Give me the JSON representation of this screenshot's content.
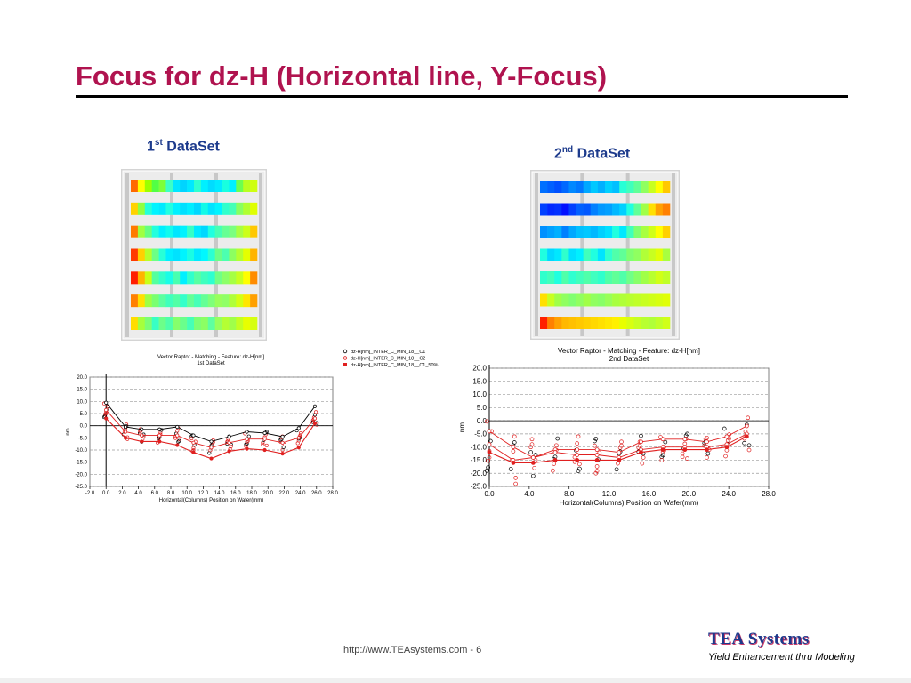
{
  "slide": {
    "title": "Focus for dz-H (Horizontal line, Y-Focus)",
    "footer_url": "http://www.TEAsystems.com - 6",
    "brand": "TEA Systems",
    "brand_tagline": "Yield Enhancement thru Modeling"
  },
  "dataset1": {
    "num": "1",
    "sup": "st",
    "label": "DataSet"
  },
  "dataset2": {
    "num": "2",
    "sup": "nd",
    "label": "DataSet"
  },
  "wafer1": {
    "rows": [
      [
        "#ff6a00",
        "#ffff00",
        "#9cff00",
        "#52ff45",
        "#7dff3a",
        "#3cffc8",
        "#00e6ff",
        "#00d4ff",
        "#00e8ff",
        "#2dffd0",
        "#00f0ff",
        "#00dcff",
        "#00eaff",
        "#18ffe0",
        "#00f0ff",
        "#6cff50",
        "#b9ff20",
        "#cfff10"
      ],
      [
        "#ffd200",
        "#8fff40",
        "#24ffda",
        "#00f4ff",
        "#00eaff",
        "#20ffe2",
        "#00f0ff",
        "#00e0ff",
        "#00eeff",
        "#00d8ff",
        "#12fae8",
        "#00e4ff",
        "#00f4ff",
        "#30ffcc",
        "#44ffb8",
        "#88ff60",
        "#b0ff30",
        "#dfff00"
      ],
      [
        "#ff7a00",
        "#a0ff40",
        "#66ff80",
        "#22ffde",
        "#00f0ff",
        "#10fbee",
        "#00e6ff",
        "#00f2ff",
        "#36ffc6",
        "#00eaff",
        "#00d8ff",
        "#20ffe0",
        "#46ffb4",
        "#66ff94",
        "#7aff80",
        "#a8ff42",
        "#ccff18",
        "#ffc800"
      ],
      [
        "#ff3a00",
        "#ffd000",
        "#b6ff2a",
        "#6cff86",
        "#28ffd8",
        "#00eeff",
        "#00e2ff",
        "#00f4ff",
        "#1afde4",
        "#00eaff",
        "#00f8ff",
        "#2cffd2",
        "#6aff88",
        "#4cffb0",
        "#8cff60",
        "#b4ff30",
        "#e4ff00",
        "#ffb400"
      ],
      [
        "#ff1e00",
        "#ffb400",
        "#c8ff18",
        "#54ff9e",
        "#34ffca",
        "#1afde6",
        "#48ffb0",
        "#00f0ff",
        "#30ffcc",
        "#56ffa4",
        "#3effbe",
        "#2effd0",
        "#70ff86",
        "#8cff68",
        "#a6ff44",
        "#c8ff20",
        "#fffe00",
        "#ff8c00"
      ],
      [
        "#ff8000",
        "#ffe000",
        "#9eff44",
        "#7aff70",
        "#5cffa0",
        "#40ffbc",
        "#52ffa6",
        "#34ffca",
        "#62ff98",
        "#46ffb8",
        "#64ff96",
        "#7eff7a",
        "#98ff5c",
        "#90ff66",
        "#b0ff3a",
        "#d4ff14",
        "#ffe600",
        "#ffa000"
      ],
      [
        "#ffdc00",
        "#a6ff3c",
        "#7cff74",
        "#38ffc4",
        "#6cff8a",
        "#50ffaa",
        "#86ff6c",
        "#6aff8c",
        "#46ffb6",
        "#7cff76",
        "#8cff64",
        "#5effa0",
        "#96ff5e",
        "#b4ff34",
        "#a0ff4a",
        "#c4ff22",
        "#e8ff00",
        "#d6ff10"
      ]
    ]
  },
  "wafer2": {
    "rows": [
      [
        "#0070ff",
        "#0060ff",
        "#0050ff",
        "#0068ff",
        "#0088ff",
        "#0078ff",
        "#00a8ff",
        "#00c8ff",
        "#00b0ff",
        "#00d0ff",
        "#00c0ff",
        "#28ffd6",
        "#40ffbc",
        "#60ff98",
        "#90ff60",
        "#c8ff20",
        "#ffff00",
        "#ffc800"
      ],
      [
        "#0040ff",
        "#0028ff",
        "#0030ff",
        "#0010ff",
        "#0040ff",
        "#0060ff",
        "#0058ff",
        "#0080ff",
        "#0098ff",
        "#00a0ff",
        "#00b8ff",
        "#00d0ff",
        "#20ffe0",
        "#60ff98",
        "#a0ff48",
        "#ffe000",
        "#ffa000",
        "#ff8000"
      ],
      [
        "#0090ff",
        "#00a0ff",
        "#00b0ff",
        "#0080ff",
        "#00a8ff",
        "#00c0ff",
        "#00c8ff",
        "#00b8ff",
        "#00d0ff",
        "#00e0ff",
        "#20ffe0",
        "#00e8ff",
        "#40ffbc",
        "#80ff70",
        "#a8ff40",
        "#d0ff18",
        "#ffff00",
        "#ffd000"
      ],
      [
        "#20ffe0",
        "#00d8ff",
        "#00e8ff",
        "#30ffcc",
        "#00e0ff",
        "#00f0ff",
        "#40ffbc",
        "#20ffe0",
        "#00e4ff",
        "#30ffd0",
        "#50ffaa",
        "#60ff98",
        "#80ff70",
        "#90ff60",
        "#b0ff38",
        "#c8ff20",
        "#e0ff08",
        "#a8ff40"
      ],
      [
        "#30ffcc",
        "#40ffbc",
        "#20ffe0",
        "#50ffaa",
        "#30ffd0",
        "#40ffbc",
        "#50ffaa",
        "#40ffc0",
        "#30ffcc",
        "#50ffa8",
        "#60ff98",
        "#50ffaa",
        "#70ff88",
        "#88ff68",
        "#a0ff48",
        "#b8ff30",
        "#d0ff18",
        "#c0ff28"
      ],
      [
        "#ffe000",
        "#c8ff20",
        "#a0ff48",
        "#90ff60",
        "#80ff70",
        "#90ff60",
        "#a0ff48",
        "#90ff60",
        "#88ff68",
        "#98ff58",
        "#a8ff40",
        "#b0ff38",
        "#b8ff30",
        "#c0ff28",
        "#c8ff20",
        "#d0ff18",
        "#d8ff10",
        "#e0ff08"
      ],
      [
        "#ff2000",
        "#ff8000",
        "#ffa000",
        "#ffb800",
        "#ffc000",
        "#ffc800",
        "#ffd000",
        "#ffd800",
        "#ffe000",
        "#ffe800",
        "#fff000",
        "#e8ff00",
        "#d8ff10",
        "#c8ff20",
        "#b8ff30",
        "#b0ff38",
        "#c0ff28",
        "#d0ff18"
      ]
    ]
  },
  "chart_data": [
    {
      "type": "scatter",
      "title": "Vector Raptor - Matching - Feature: dz-H[nm]",
      "subtitle": "1st DataSet",
      "xlabel": "Horizontal(Columns) Position on Wafer(mm)",
      "ylabel": "nm",
      "xlim": [
        -2,
        28
      ],
      "ylim": [
        -25,
        20
      ],
      "xticks": [
        "-2.0",
        "0.0",
        "2.0",
        "4.0",
        "6.0",
        "8.0",
        "10.0",
        "12.0",
        "14.0",
        "16.0",
        "18.0",
        "20.0",
        "22.0",
        "24.0",
        "26.0",
        "28.0"
      ],
      "yticks": [
        "20.0",
        "15.0",
        "10.0",
        "5.0",
        "0.0",
        "-5.0",
        "-10.0",
        "-15.0",
        "-20.0",
        "-25.0"
      ],
      "grid": true,
      "legend_position": "top-right",
      "legend": [
        {
          "name": "dz-H[nm]_INTER_C_MIN_18__C1",
          "marker": "open-black"
        },
        {
          "name": "dz-H[nm]_INTER_C_MIN_18__C2",
          "marker": "open-red"
        },
        {
          "name": "dz-H[nm]_INTER_C_MIN_18__C1_50%",
          "marker": "filled-red"
        }
      ],
      "x": [
        0,
        2.4,
        4.4,
        6.6,
        8.8,
        10.8,
        13,
        15.2,
        17.4,
        19.6,
        21.8,
        23.8,
        25.8
      ],
      "series": [
        {
          "name": "dz-H[nm]_INTER_C_MIN_18__C1",
          "values": [
            9.5,
            -0.5,
            -1.5,
            -1.5,
            -0.5,
            -4,
            -6.5,
            -4.5,
            -2.5,
            -3,
            -4.5,
            -1,
            8
          ],
          "color": "#000000"
        },
        {
          "name": "dz-H[nm]_INTER_C_MIN_18__C2",
          "values": [
            6.5,
            -2.5,
            -4,
            -4,
            -4,
            -7,
            -9,
            -7,
            -5.5,
            -5.5,
            -7,
            -5,
            3
          ],
          "color": "#e02020"
        },
        {
          "name": "dz-H[nm]_INTER_C_MIN_18__C1_50%",
          "values": [
            3,
            -5,
            -6.5,
            -6.5,
            -8,
            -11,
            -13.5,
            -10.5,
            -9.5,
            -10,
            -11.5,
            -9,
            1
          ],
          "color": "#e02020"
        }
      ],
      "spread": [
        3,
        3,
        3,
        3,
        3,
        3.5,
        3,
        3,
        3,
        3,
        3,
        3,
        3
      ]
    },
    {
      "type": "scatter",
      "title": "Vector Raptor - Matching - Feature: dz-H[nm]",
      "subtitle": "2nd DataSet",
      "xlabel": "Horizontal(Columns) Position on Wafer(mm)",
      "ylabel": "nm",
      "xlim": [
        0,
        28
      ],
      "ylim": [
        -25,
        20
      ],
      "xticks": [
        "0.0",
        "4.0",
        "8.0",
        "12.0",
        "16.0",
        "20.0",
        "24.0",
        "28.0"
      ],
      "yticks": [
        "20.0",
        "15.0",
        "10.0",
        "5.0",
        "0.0",
        "-5.0",
        "-10.0",
        "-15.0",
        "-20.0",
        "-25.0"
      ],
      "grid": true,
      "x": [
        0,
        2.4,
        4.4,
        6.6,
        8.8,
        10.8,
        13,
        15.2,
        17.4,
        19.6,
        21.8,
        23.8,
        25.8
      ],
      "series": [
        {
          "name": "",
          "values": [
            -4,
            -10,
            -14,
            -11,
            -11,
            -11,
            -12,
            -8,
            -7,
            -7,
            -8,
            -6,
            -2
          ],
          "color": "#e02020"
        },
        {
          "name": "",
          "values": [
            -9,
            -15,
            -14,
            -12,
            -13,
            -13,
            -14,
            -11,
            -10,
            -10,
            -10,
            -9,
            -5
          ],
          "color": "#e02020"
        },
        {
          "name": "",
          "values": [
            -12,
            -16,
            -16,
            -15,
            -15,
            -15,
            -15,
            -12,
            -11,
            -11,
            -11,
            -10,
            -6
          ],
          "color": "#e02020"
        }
      ],
      "spread": [
        10,
        9,
        8,
        7,
        7,
        7,
        6,
        6,
        5,
        5,
        4,
        6,
        7
      ]
    }
  ]
}
